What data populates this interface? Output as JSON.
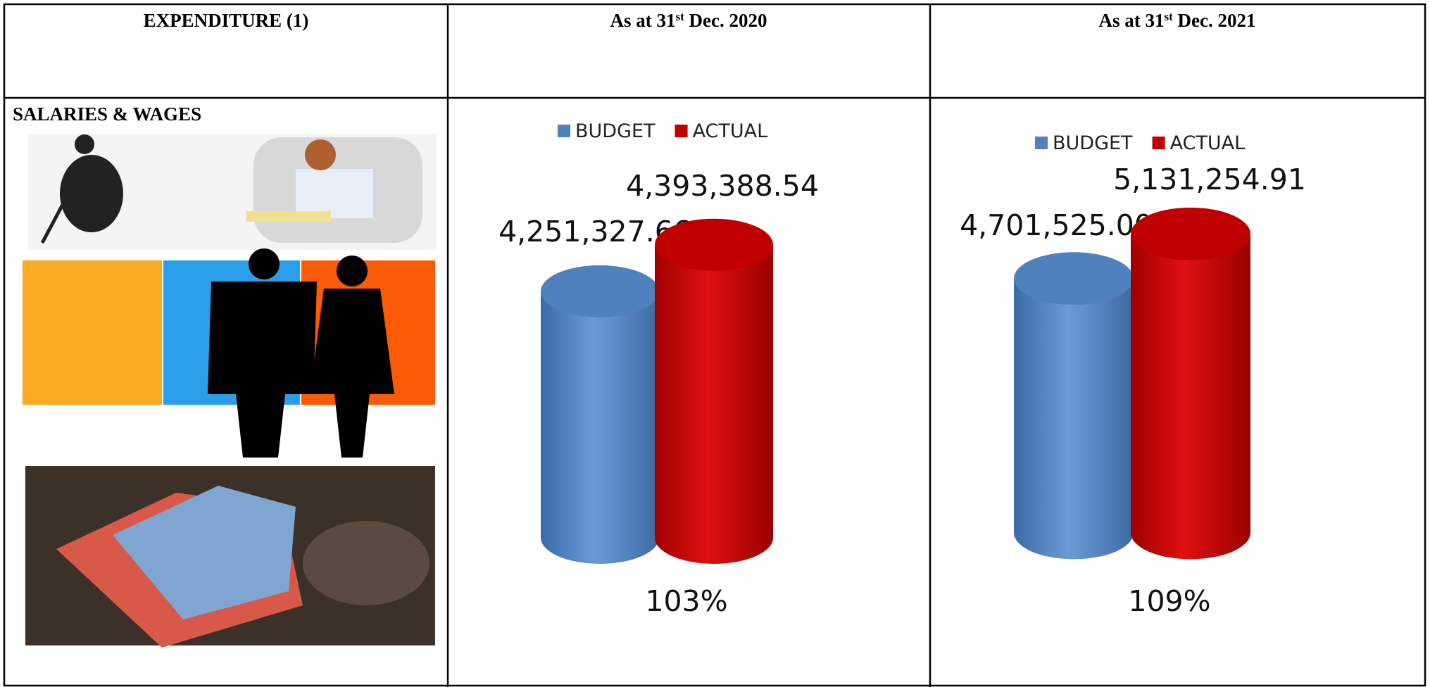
{
  "table": {
    "headers": [
      {
        "text": "EXPENDITURE (1)"
      },
      {
        "prefix": "As at 31",
        "sup": "st",
        "suffix": " Dec. 2020"
      },
      {
        "prefix": "As at 31",
        "sup": "st",
        "suffix": " Dec. 2021"
      }
    ],
    "row_label": "SALARIES & WAGES"
  },
  "chart_data": [
    {
      "type": "bar",
      "series": [
        {
          "name": "BUDGET",
          "color": "#4f81bd",
          "values": [
            4251327.66
          ],
          "value_labels": [
            "4,251,327.66"
          ]
        },
        {
          "name": "ACTUAL",
          "color": "#c00000",
          "values": [
            4393388.54
          ],
          "value_labels": [
            "4,393,388.54"
          ]
        }
      ],
      "ylim": [
        3500000,
        4500000
      ],
      "annotation": "103%"
    },
    {
      "type": "bar",
      "series": [
        {
          "name": "BUDGET",
          "color": "#4f81bd",
          "values": [
            4701525.0
          ],
          "value_labels": [
            "4,701,525.00"
          ]
        },
        {
          "name": "ACTUAL",
          "color": "#c00000",
          "values": [
            5131254.91
          ],
          "value_labels": [
            "5,131,254.91"
          ]
        }
      ],
      "ylim": [
        2250000,
        5500000
      ],
      "annotation": "109%"
    }
  ]
}
